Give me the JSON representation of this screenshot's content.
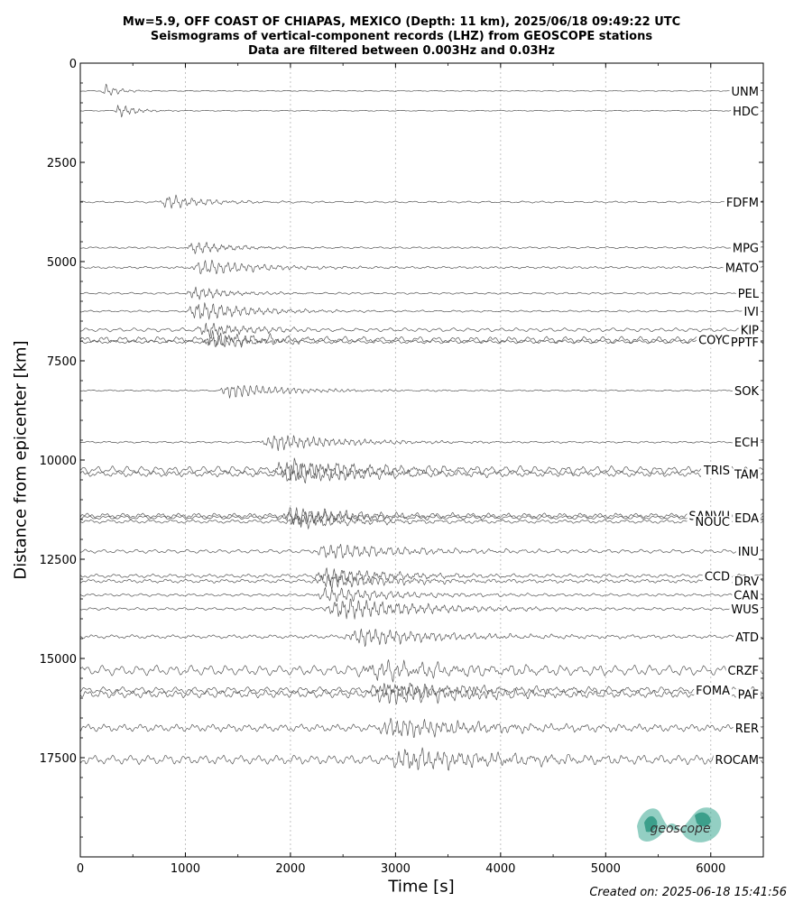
{
  "title_lines": [
    "Mw=5.9, OFF COAST OF CHIAPAS, MEXICO (Depth: 11 km), 2025/06/18 09:49:22 UTC",
    "Seismograms of vertical-component records (LHZ) from GEOSCOPE stations",
    "Data are filtered between 0.003Hz and 0.03Hz"
  ],
  "footer": {
    "created": "Created on: 2025-06-18 15:41:56"
  },
  "logo": {
    "text": "geoscope",
    "color": "#3aa892"
  },
  "chart_data": {
    "type": "line",
    "xlabel": "Time [s]",
    "ylabel": "Distance from epicenter [km]",
    "xlim": [
      0,
      6500
    ],
    "ylim": [
      20000,
      0
    ],
    "y_inverted": true,
    "xticks": [
      0,
      1000,
      2000,
      3000,
      4000,
      5000,
      6000
    ],
    "yticks": [
      0,
      2500,
      5000,
      7500,
      10000,
      12500,
      15000,
      17500
    ],
    "grid": "vertical dotted",
    "trace_color": "#555555",
    "stations": [
      {
        "name": "UNM",
        "distance": 700,
        "onset": 200,
        "amp": 0.9,
        "dur": 250,
        "noise": 0.05
      },
      {
        "name": "HDC",
        "distance": 1200,
        "onset": 330,
        "amp": 0.9,
        "dur": 300,
        "noise": 0.05
      },
      {
        "name": "FDFM",
        "distance": 3500,
        "onset": 750,
        "amp": 0.9,
        "dur": 700,
        "noise": 0.1
      },
      {
        "name": "MPG",
        "distance": 4650,
        "onset": 1000,
        "amp": 0.8,
        "dur": 700,
        "noise": 0.1
      },
      {
        "name": "MATO",
        "distance": 5150,
        "onset": 1050,
        "amp": 1.0,
        "dur": 1000,
        "noise": 0.12
      },
      {
        "name": "PEL",
        "distance": 5800,
        "onset": 1000,
        "amp": 0.8,
        "dur": 700,
        "noise": 0.1
      },
      {
        "name": "IVI",
        "distance": 6250,
        "onset": 1000,
        "amp": 1.2,
        "dur": 1000,
        "noise": 0.1
      },
      {
        "name": "KIP",
        "distance": 6720,
        "onset": 1100,
        "amp": 1.0,
        "dur": 800,
        "noise": 0.2
      },
      {
        "name": "COYC",
        "distance": 6970,
        "onset": 1150,
        "amp": 1.0,
        "dur": 900,
        "noise": 0.35
      },
      {
        "name": "PPTF",
        "distance": 7020,
        "onset": 1150,
        "amp": 0.7,
        "dur": 900,
        "noise": 0.2
      },
      {
        "name": "SOK",
        "distance": 8250,
        "onset": 1300,
        "amp": 0.9,
        "dur": 1100,
        "noise": 0.08
      },
      {
        "name": "ECH",
        "distance": 9550,
        "onset": 1700,
        "amp": 1.0,
        "dur": 1300,
        "noise": 0.1
      },
      {
        "name": "TRIS",
        "distance": 10250,
        "onset": 1800,
        "amp": 1.3,
        "dur": 1500,
        "noise": 0.4
      },
      {
        "name": "TAM",
        "distance": 10350,
        "onset": 1850,
        "amp": 1.2,
        "dur": 1400,
        "noise": 0.3
      },
      {
        "name": "SANVU",
        "distance": 11400,
        "onset": 1900,
        "amp": 1.1,
        "dur": 1100,
        "noise": 0.25
      },
      {
        "name": "EDA",
        "distance": 11450,
        "onset": 1900,
        "amp": 0.9,
        "dur": 1100,
        "noise": 0.2
      },
      {
        "name": "NOUC",
        "distance": 11550,
        "onset": 1950,
        "amp": 0.8,
        "dur": 1100,
        "noise": 0.2
      },
      {
        "name": "INU",
        "distance": 12300,
        "onset": 2200,
        "amp": 1.0,
        "dur": 1500,
        "noise": 0.2
      },
      {
        "name": "CCD",
        "distance": 12920,
        "onset": 2200,
        "amp": 1.0,
        "dur": 1300,
        "noise": 0.2
      },
      {
        "name": "DRV",
        "distance": 13050,
        "onset": 2200,
        "amp": 0.9,
        "dur": 1300,
        "noise": 0.2
      },
      {
        "name": "CAN",
        "distance": 13400,
        "onset": 2200,
        "amp": 0.9,
        "dur": 1400,
        "noise": 0.15
      },
      {
        "name": "WUS",
        "distance": 13750,
        "onset": 2300,
        "amp": 1.3,
        "dur": 1600,
        "noise": 0.15
      },
      {
        "name": "ATD",
        "distance": 14450,
        "onset": 2500,
        "amp": 1.1,
        "dur": 1500,
        "noise": 0.2
      },
      {
        "name": "CRZF",
        "distance": 15300,
        "onset": 2600,
        "amp": 1.0,
        "dur": 1800,
        "noise": 0.55
      },
      {
        "name": "FOMA",
        "distance": 15800,
        "onset": 2700,
        "amp": 0.9,
        "dur": 1800,
        "noise": 0.35
      },
      {
        "name": "PAF",
        "distance": 15900,
        "onset": 2700,
        "amp": 1.2,
        "dur": 1800,
        "noise": 0.4
      },
      {
        "name": "RER",
        "distance": 16750,
        "onset": 2800,
        "amp": 1.2,
        "dur": 1600,
        "noise": 0.4
      },
      {
        "name": "ROCAM",
        "distance": 17550,
        "onset": 2900,
        "amp": 1.3,
        "dur": 1800,
        "noise": 0.5
      }
    ],
    "label_positions": {
      "UNM": "right",
      "HDC": "right",
      "FDFM": "right",
      "MPG": "right",
      "MATO": "right",
      "PEL": "right",
      "IVI": "right",
      "KIP": "right",
      "COYC": "inner",
      "PPTF": "right",
      "SOK": "right",
      "ECH": "right",
      "TRIS": "inner",
      "TAM": "right",
      "SANVU": "inner",
      "EDA": "right",
      "NOUC": "inner",
      "INU": "right",
      "CCD": "inner",
      "DRV": "right",
      "CAN": "right",
      "WUS": "right",
      "ATD": "right",
      "CRZF": "right",
      "FOMA": "inner",
      "PAF": "right",
      "RER": "right",
      "ROCAM": "right"
    }
  }
}
